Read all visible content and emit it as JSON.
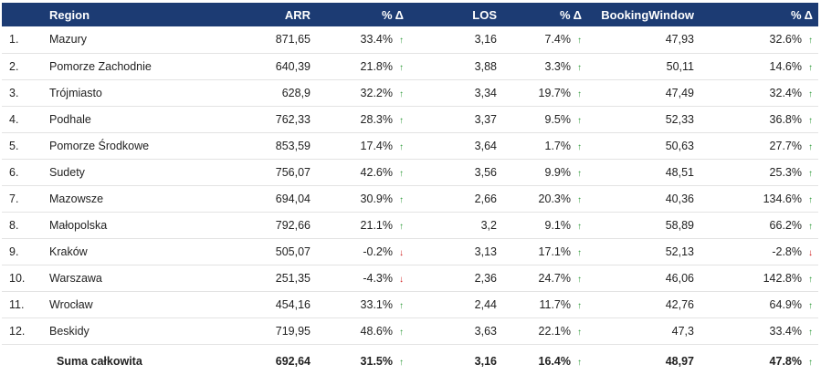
{
  "colors": {
    "header_bg": "#1c3b73",
    "up": "#2e9b3a",
    "down": "#d02020"
  },
  "headers": {
    "region": "Region",
    "arr": "ARR",
    "arr_delta": "% Δ",
    "los": "LOS",
    "los_delta": "% Δ",
    "bw": "BookingWindow",
    "bw_delta": "% Δ"
  },
  "rows": [
    {
      "idx": "1.",
      "region": "Mazury",
      "arr": "871,65",
      "arr_d": "33.4%",
      "arr_dir": "up",
      "los": "3,16",
      "los_d": "7.4%",
      "los_dir": "up",
      "bw": "47,93",
      "bw_d": "32.6%",
      "bw_dir": "up"
    },
    {
      "idx": "2.",
      "region": "Pomorze Zachodnie",
      "arr": "640,39",
      "arr_d": "21.8%",
      "arr_dir": "up",
      "los": "3,88",
      "los_d": "3.3%",
      "los_dir": "up",
      "bw": "50,11",
      "bw_d": "14.6%",
      "bw_dir": "up"
    },
    {
      "idx": "3.",
      "region": "Trójmiasto",
      "arr": "628,9",
      "arr_d": "32.2%",
      "arr_dir": "up",
      "los": "3,34",
      "los_d": "19.7%",
      "los_dir": "up",
      "bw": "47,49",
      "bw_d": "32.4%",
      "bw_dir": "up"
    },
    {
      "idx": "4.",
      "region": "Podhale",
      "arr": "762,33",
      "arr_d": "28.3%",
      "arr_dir": "up",
      "los": "3,37",
      "los_d": "9.5%",
      "los_dir": "up",
      "bw": "52,33",
      "bw_d": "36.8%",
      "bw_dir": "up"
    },
    {
      "idx": "5.",
      "region": "Pomorze Środkowe",
      "arr": "853,59",
      "arr_d": "17.4%",
      "arr_dir": "up",
      "los": "3,64",
      "los_d": "1.7%",
      "los_dir": "up",
      "bw": "50,63",
      "bw_d": "27.7%",
      "bw_dir": "up"
    },
    {
      "idx": "6.",
      "region": "Sudety",
      "arr": "756,07",
      "arr_d": "42.6%",
      "arr_dir": "up",
      "los": "3,56",
      "los_d": "9.9%",
      "los_dir": "up",
      "bw": "48,51",
      "bw_d": "25.3%",
      "bw_dir": "up"
    },
    {
      "idx": "7.",
      "region": "Mazowsze",
      "arr": "694,04",
      "arr_d": "30.9%",
      "arr_dir": "up",
      "los": "2,66",
      "los_d": "20.3%",
      "los_dir": "up",
      "bw": "40,36",
      "bw_d": "134.6%",
      "bw_dir": "up"
    },
    {
      "idx": "8.",
      "region": "Małopolska",
      "arr": "792,66",
      "arr_d": "21.1%",
      "arr_dir": "up",
      "los": "3,2",
      "los_d": "9.1%",
      "los_dir": "up",
      "bw": "58,89",
      "bw_d": "66.2%",
      "bw_dir": "up"
    },
    {
      "idx": "9.",
      "region": "Kraków",
      "arr": "505,07",
      "arr_d": "-0.2%",
      "arr_dir": "down",
      "los": "3,13",
      "los_d": "17.1%",
      "los_dir": "up",
      "bw": "52,13",
      "bw_d": "-2.8%",
      "bw_dir": "down"
    },
    {
      "idx": "10.",
      "region": "Warszawa",
      "arr": "251,35",
      "arr_d": "-4.3%",
      "arr_dir": "down",
      "los": "2,36",
      "los_d": "24.7%",
      "los_dir": "up",
      "bw": "46,06",
      "bw_d": "142.8%",
      "bw_dir": "up"
    },
    {
      "idx": "11.",
      "region": "Wrocław",
      "arr": "454,16",
      "arr_d": "33.1%",
      "arr_dir": "up",
      "los": "2,44",
      "los_d": "11.7%",
      "los_dir": "up",
      "bw": "42,76",
      "bw_d": "64.9%",
      "bw_dir": "up"
    },
    {
      "idx": "12.",
      "region": "Beskidy",
      "arr": "719,95",
      "arr_d": "48.6%",
      "arr_dir": "up",
      "los": "3,63",
      "los_d": "22.1%",
      "los_dir": "up",
      "bw": "47,3",
      "bw_d": "33.4%",
      "bw_dir": "up"
    }
  ],
  "total": {
    "label": "Suma całkowita",
    "arr": "692,64",
    "arr_d": "31.5%",
    "arr_dir": "up",
    "los": "3,16",
    "los_d": "16.4%",
    "los_dir": "up",
    "bw": "48,97",
    "bw_d": "47.8%",
    "bw_dir": "up"
  },
  "icons": {
    "up": "arrow-up-icon",
    "down": "arrow-down-icon"
  }
}
